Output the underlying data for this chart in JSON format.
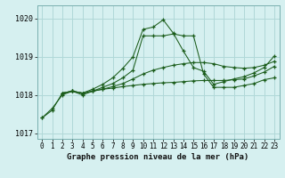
{
  "title": "Graphe pression niveau de la mer (hPa)",
  "ylabel_ticks": [
    1017,
    1018,
    1019,
    1020
  ],
  "xlim": [
    -0.5,
    23.5
  ],
  "ylim": [
    1016.85,
    1020.35
  ],
  "background_color": "#d6f0f0",
  "grid_color": "#b0d8d8",
  "line_color": "#1a5c1a",
  "series": [
    {
      "x": [
        0,
        1,
        2,
        3,
        4,
        5,
        6,
        7,
        8,
        9,
        10,
        11,
        12,
        13,
        14,
        15,
        16,
        17,
        18,
        19,
        20,
        21,
        22,
        23
      ],
      "y": [
        1017.4,
        1017.65,
        1018.0,
        1018.1,
        1018.05,
        1018.1,
        1018.2,
        1018.3,
        1018.45,
        1018.65,
        1019.55,
        1019.55,
        1019.55,
        1019.6,
        1019.55,
        1019.55,
        1018.55,
        1018.2,
        1018.2,
        1018.2,
        1018.25,
        1018.3,
        1018.4,
        1018.45
      ]
    },
    {
      "x": [
        0,
        1,
        2,
        3,
        4,
        5,
        6,
        7,
        8,
        9,
        10,
        11,
        12,
        13,
        14,
        15,
        16,
        17,
        18,
        19,
        20,
        21,
        22,
        23
      ],
      "y": [
        1017.4,
        1017.6,
        1018.05,
        1018.1,
        1018.05,
        1018.15,
        1018.28,
        1018.45,
        1018.7,
        1019.0,
        1019.72,
        1019.78,
        1019.97,
        1019.62,
        1019.15,
        1018.72,
        1018.62,
        1018.28,
        1018.35,
        1018.42,
        1018.48,
        1018.58,
        1018.72,
        1019.02
      ]
    },
    {
      "x": [
        2,
        3,
        4,
        5,
        6,
        7,
        8,
        9,
        10,
        11,
        12,
        13,
        14,
        15,
        16,
        17,
        18,
        19,
        20,
        21,
        22,
        23
      ],
      "y": [
        1018.05,
        1018.1,
        1018.0,
        1018.1,
        1018.15,
        1018.18,
        1018.22,
        1018.25,
        1018.28,
        1018.3,
        1018.32,
        1018.33,
        1018.35,
        1018.37,
        1018.38,
        1018.38,
        1018.38,
        1018.4,
        1018.42,
        1018.5,
        1018.6,
        1018.75
      ]
    },
    {
      "x": [
        2,
        3,
        4,
        5,
        6,
        7,
        8,
        9,
        10,
        11,
        12,
        13,
        14,
        15,
        16,
        17,
        18,
        19,
        20,
        21,
        22,
        23
      ],
      "y": [
        1018.05,
        1018.1,
        1018.05,
        1018.1,
        1018.15,
        1018.22,
        1018.3,
        1018.42,
        1018.55,
        1018.65,
        1018.72,
        1018.78,
        1018.82,
        1018.85,
        1018.85,
        1018.82,
        1018.75,
        1018.72,
        1018.7,
        1018.72,
        1018.78,
        1018.88
      ]
    }
  ]
}
